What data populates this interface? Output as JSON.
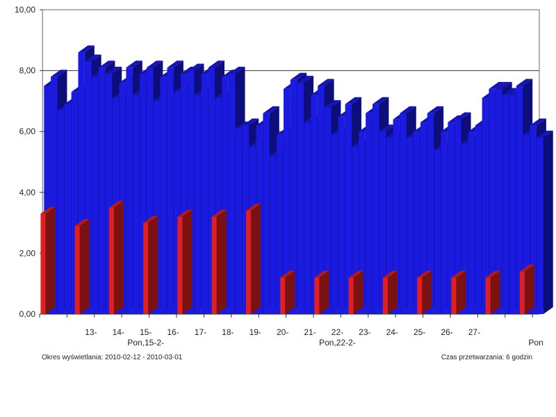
{
  "chart_data": {
    "type": "bar",
    "title": "",
    "xlabel": "",
    "ylabel": "",
    "ylim": [
      0,
      10
    ],
    "y_ticks": [
      "0,00",
      "2,00",
      "4,00",
      "6,00",
      "8,00",
      "10,00"
    ],
    "grid": "horizontal",
    "projection": "3d",
    "x_tick_labels": [
      {
        "text": "13-",
        "index": 7
      },
      {
        "text": "14-",
        "index": 11
      },
      {
        "text": "15-",
        "index": 15
      },
      {
        "text": "16-",
        "index": 19
      },
      {
        "text": "17-",
        "index": 23
      },
      {
        "text": "18-",
        "index": 27
      },
      {
        "text": "19-",
        "index": 31
      },
      {
        "text": "20-",
        "index": 35
      },
      {
        "text": "21-",
        "index": 39
      },
      {
        "text": "22-",
        "index": 43
      },
      {
        "text": "23-",
        "index": 47
      },
      {
        "text": "24-",
        "index": 51
      },
      {
        "text": "25-",
        "index": 55
      },
      {
        "text": "26-",
        "index": 59
      },
      {
        "text": "27-",
        "index": 63
      }
    ],
    "x_group_labels": [
      {
        "text": "Pon,15-2-",
        "index": 15
      },
      {
        "text": "Pon,22-2-",
        "index": 43
      },
      {
        "text": "Pon",
        "index": 72
      }
    ],
    "series": [
      {
        "color": "#1a1ae0",
        "values": [
          7.5,
          7.8,
          6.7,
          6.9,
          7.3,
          8.6,
          8.3,
          7.8,
          8.1,
          7.9,
          7.1,
          7.6,
          8.1,
          7.2,
          7.9,
          8.1,
          7.0,
          7.8,
          8.1,
          7.3,
          7.9,
          8.0,
          7.2,
          7.9,
          8.1,
          7.1,
          7.8,
          7.9,
          6.1,
          6.2,
          5.5,
          6.2,
          6.6,
          5.2,
          5.9,
          7.4,
          7.7,
          7.6,
          6.3,
          7.2,
          7.5,
          6.8,
          5.9,
          6.5,
          6.9,
          5.5,
          6.0,
          6.6,
          6.9,
          6.0,
          5.8,
          6.4,
          6.6,
          5.8,
          6.0,
          6.3,
          6.6,
          5.4,
          6.0,
          6.3,
          6.4,
          5.6,
          6.0,
          6.2,
          7.1,
          7.4,
          7.4,
          7.2,
          7.2,
          7.5,
          5.9,
          6.2,
          5.8
        ],
        "labels": []
      },
      {
        "color": "#e02020",
        "values": [
          3.3,
          null,
          null,
          null,
          null,
          2.9,
          null,
          null,
          null,
          null,
          3.5,
          null,
          null,
          null,
          null,
          3.0,
          null,
          null,
          null,
          null,
          3.2,
          null,
          null,
          null,
          null,
          3.2,
          null,
          null,
          null,
          null,
          3.4,
          null,
          null,
          null,
          null,
          1.2,
          null,
          null,
          null,
          null,
          1.2,
          null,
          null,
          null,
          null,
          1.2,
          null,
          null,
          null,
          null,
          1.2,
          null,
          null,
          null,
          null,
          1.2,
          null,
          null,
          null,
          null,
          1.2,
          null,
          null,
          null,
          null,
          1.2,
          null,
          null,
          null,
          null,
          1.4,
          null,
          null
        ],
        "labels": []
      }
    ]
  },
  "footer": {
    "left": "Okres wyświetlania: 2010-02-12 - 2010-03-01",
    "right": "Czas przetwarzania: 6 godzin"
  }
}
